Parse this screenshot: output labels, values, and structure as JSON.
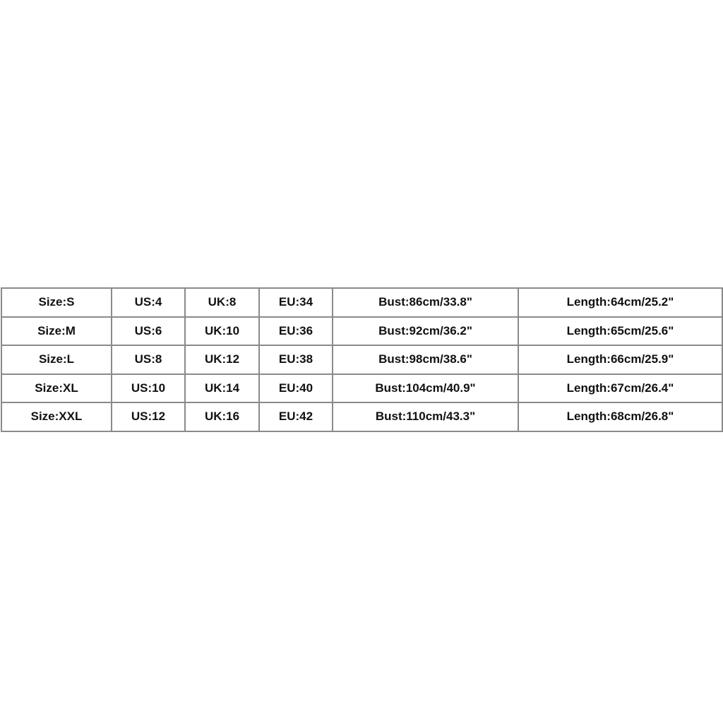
{
  "size_chart": {
    "rows": [
      [
        "Size:S",
        "US:4",
        "UK:8",
        "EU:34",
        "Bust:86cm/33.8\"",
        "Length:64cm/25.2\""
      ],
      [
        "Size:M",
        "US:6",
        "UK:10",
        "EU:36",
        "Bust:92cm/36.2\"",
        "Length:65cm/25.6\""
      ],
      [
        "Size:L",
        "US:8",
        "UK:12",
        "EU:38",
        "Bust:98cm/38.6\"",
        "Length:66cm/25.9\""
      ],
      [
        "Size:XL",
        "US:10",
        "UK:14",
        "EU:40",
        "Bust:104cm/40.9\"",
        "Length:67cm/26.4\""
      ],
      [
        "Size:XXL",
        "US:12",
        "UK:16",
        "EU:42",
        "Bust:110cm/43.3\"",
        "Length:68cm/26.8\""
      ]
    ]
  }
}
